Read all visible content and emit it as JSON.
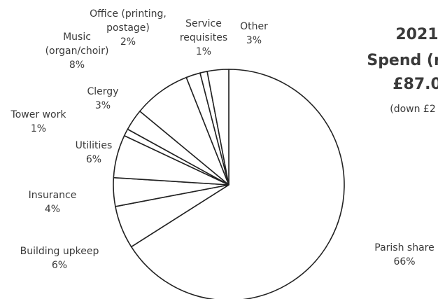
{
  "chart_data": {
    "type": "pie",
    "title_lines": [
      "2021",
      "Spend (n",
      "£87.0",
      "(down £2"
    ],
    "slices": [
      {
        "label_lines": [
          "Parish share",
          "66%"
        ],
        "value": 66
      },
      {
        "label_lines": [
          "Building upkeep",
          "6%"
        ],
        "value": 6
      },
      {
        "label_lines": [
          "Insurance",
          "4%"
        ],
        "value": 4
      },
      {
        "label_lines": [
          "Utilities",
          "6%"
        ],
        "value": 6
      },
      {
        "label_lines": [
          "Tower work",
          "1%"
        ],
        "value": 1
      },
      {
        "label_lines": [
          "Clergy",
          "3%"
        ],
        "value": 3
      },
      {
        "label_lines": [
          "Music",
          "(organ/choir)",
          "8%"
        ],
        "value": 8
      },
      {
        "label_lines": [
          "Office (printing,",
          "postage)",
          "2%"
        ],
        "value": 2
      },
      {
        "label_lines": [
          "Service",
          "requisites",
          "1%"
        ],
        "value": 1
      },
      {
        "label_lines": [
          "Other",
          "3%"
        ],
        "value": 3
      }
    ],
    "colors": {
      "fill": "#ffffff",
      "stroke": "#222222",
      "text": "#3a3a3a"
    }
  }
}
